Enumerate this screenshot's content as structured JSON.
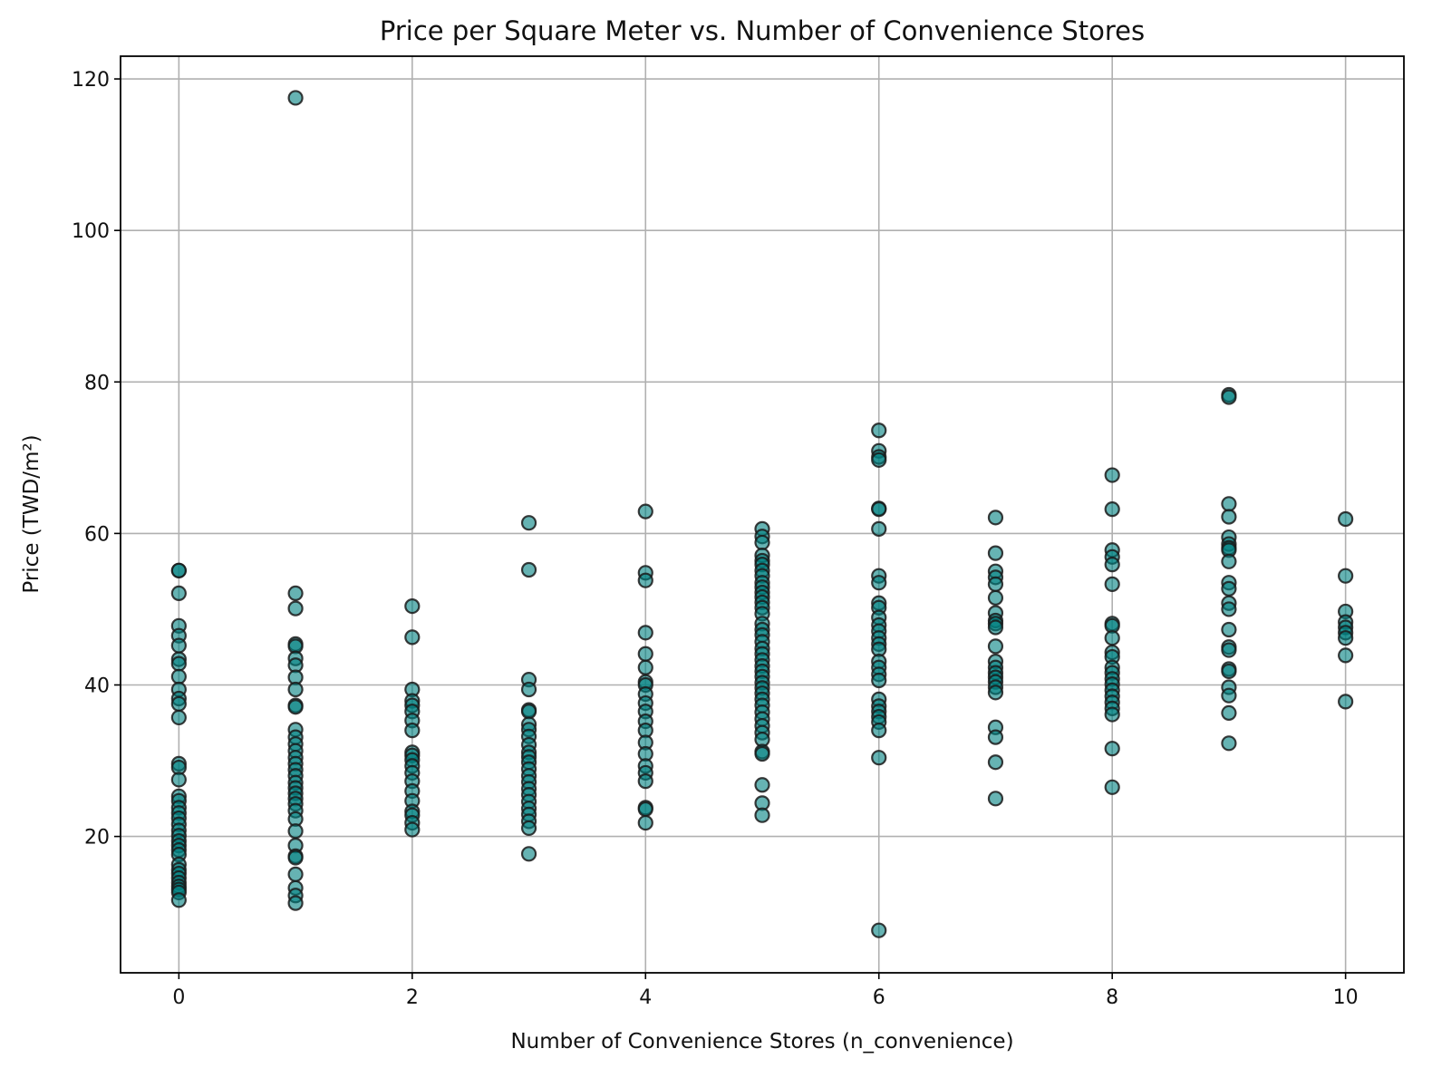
{
  "chart_data": {
    "type": "scatter",
    "title": "Price per Square Meter vs. Number of Convenience Stores",
    "xlabel": "Number of Convenience Stores (n_convenience)",
    "ylabel": "Price (TWD/m²)",
    "xlim": [
      -0.5,
      10.5
    ],
    "ylim": [
      2,
      123
    ],
    "xticks": [
      0,
      2,
      4,
      6,
      8,
      10
    ],
    "yticks": [
      20,
      40,
      60,
      80,
      100,
      120
    ],
    "grid": true,
    "legend": "none",
    "marker_color": "#008080",
    "marker_edge_color": "#1a1a1a",
    "marker_opacity": 0.6,
    "series": [
      {
        "points": [
          [
            0,
            55.1
          ],
          [
            0,
            55.1
          ],
          [
            0,
            52.1
          ],
          [
            0,
            47.8
          ],
          [
            0,
            46.5
          ],
          [
            0,
            45.2
          ],
          [
            0,
            43.4
          ],
          [
            0,
            42.8
          ],
          [
            0,
            41.1
          ],
          [
            0,
            39.4
          ],
          [
            0,
            38.2
          ],
          [
            0,
            37.5
          ],
          [
            0,
            35.7
          ],
          [
            0,
            29.6
          ],
          [
            0,
            29.1
          ],
          [
            0,
            27.5
          ],
          [
            0,
            25.3
          ],
          [
            0,
            24.7
          ],
          [
            0,
            23.8
          ],
          [
            0,
            23.1
          ],
          [
            0,
            22.4
          ],
          [
            0,
            21.6
          ],
          [
            0,
            20.8
          ],
          [
            0,
            20.1
          ],
          [
            0,
            19.4
          ],
          [
            0,
            18.8
          ],
          [
            0,
            18.2
          ],
          [
            0,
            17.6
          ],
          [
            0,
            16.3
          ],
          [
            0,
            15.6
          ],
          [
            0,
            15.1
          ],
          [
            0,
            14.5
          ],
          [
            0,
            13.9
          ],
          [
            0,
            13.4
          ],
          [
            0,
            13.0
          ],
          [
            0,
            12.6
          ],
          [
            0,
            11.6
          ],
          [
            1,
            117.5
          ],
          [
            1,
            52.1
          ],
          [
            1,
            50.1
          ],
          [
            1,
            45.4
          ],
          [
            1,
            45.1
          ],
          [
            1,
            43.5
          ],
          [
            1,
            42.6
          ],
          [
            1,
            41.0
          ],
          [
            1,
            39.4
          ],
          [
            1,
            37.3
          ],
          [
            1,
            37.1
          ],
          [
            1,
            34.1
          ],
          [
            1,
            33.1
          ],
          [
            1,
            32.2
          ],
          [
            1,
            31.3
          ],
          [
            1,
            30.4
          ],
          [
            1,
            29.6
          ],
          [
            1,
            28.8
          ],
          [
            1,
            28.0
          ],
          [
            1,
            27.1
          ],
          [
            1,
            26.4
          ],
          [
            1,
            25.7
          ],
          [
            1,
            25.0
          ],
          [
            1,
            24.3
          ],
          [
            1,
            23.4
          ],
          [
            1,
            22.3
          ],
          [
            1,
            20.7
          ],
          [
            1,
            18.8
          ],
          [
            1,
            17.4
          ],
          [
            1,
            17.2
          ],
          [
            1,
            15.0
          ],
          [
            1,
            13.2
          ],
          [
            1,
            12.2
          ],
          [
            1,
            11.2
          ],
          [
            2,
            50.4
          ],
          [
            2,
            46.3
          ],
          [
            2,
            39.4
          ],
          [
            2,
            37.9
          ],
          [
            2,
            37.3
          ],
          [
            2,
            36.5
          ],
          [
            2,
            35.3
          ],
          [
            2,
            34.0
          ],
          [
            2,
            31.1
          ],
          [
            2,
            30.7
          ],
          [
            2,
            30.1
          ],
          [
            2,
            29.3
          ],
          [
            2,
            28.4
          ],
          [
            2,
            27.3
          ],
          [
            2,
            26.0
          ],
          [
            2,
            24.7
          ],
          [
            2,
            23.3
          ],
          [
            2,
            22.8
          ],
          [
            2,
            21.8
          ],
          [
            2,
            20.9
          ],
          [
            3,
            61.4
          ],
          [
            3,
            55.2
          ],
          [
            3,
            40.7
          ],
          [
            3,
            39.4
          ],
          [
            3,
            36.7
          ],
          [
            3,
            36.5
          ],
          [
            3,
            34.8
          ],
          [
            3,
            34.1
          ],
          [
            3,
            33.2
          ],
          [
            3,
            32.1
          ],
          [
            3,
            31.1
          ],
          [
            3,
            30.5
          ],
          [
            3,
            29.8
          ],
          [
            3,
            28.9
          ],
          [
            3,
            28.0
          ],
          [
            3,
            27.2
          ],
          [
            3,
            26.3
          ],
          [
            3,
            25.5
          ],
          [
            3,
            24.6
          ],
          [
            3,
            23.7
          ],
          [
            3,
            22.9
          ],
          [
            3,
            22.0
          ],
          [
            3,
            21.1
          ],
          [
            3,
            17.7
          ],
          [
            4,
            62.9
          ],
          [
            4,
            54.8
          ],
          [
            4,
            53.8
          ],
          [
            4,
            46.9
          ],
          [
            4,
            44.1
          ],
          [
            4,
            42.3
          ],
          [
            4,
            40.4
          ],
          [
            4,
            40.0
          ],
          [
            4,
            38.8
          ],
          [
            4,
            37.6
          ],
          [
            4,
            36.5
          ],
          [
            4,
            35.2
          ],
          [
            4,
            34.0
          ],
          [
            4,
            32.4
          ],
          [
            4,
            30.9
          ],
          [
            4,
            29.3
          ],
          [
            4,
            28.4
          ],
          [
            4,
            27.3
          ],
          [
            4,
            23.8
          ],
          [
            4,
            23.6
          ],
          [
            4,
            21.8
          ],
          [
            5,
            60.6
          ],
          [
            5,
            59.6
          ],
          [
            5,
            58.8
          ],
          [
            5,
            57.1
          ],
          [
            5,
            56.4
          ],
          [
            5,
            55.9
          ],
          [
            5,
            55.1
          ],
          [
            5,
            54.4
          ],
          [
            5,
            53.5
          ],
          [
            5,
            52.9
          ],
          [
            5,
            52.2
          ],
          [
            5,
            51.6
          ],
          [
            5,
            50.9
          ],
          [
            5,
            50.2
          ],
          [
            5,
            49.4
          ],
          [
            5,
            48.1
          ],
          [
            5,
            47.3
          ],
          [
            5,
            46.6
          ],
          [
            5,
            45.7
          ],
          [
            5,
            44.8
          ],
          [
            5,
            44.1
          ],
          [
            5,
            43.3
          ],
          [
            5,
            42.5
          ],
          [
            5,
            41.8
          ],
          [
            5,
            41.1
          ],
          [
            5,
            40.3
          ],
          [
            5,
            39.6
          ],
          [
            5,
            38.9
          ],
          [
            5,
            38.1
          ],
          [
            5,
            37.3
          ],
          [
            5,
            36.4
          ],
          [
            5,
            35.5
          ],
          [
            5,
            34.6
          ],
          [
            5,
            33.7
          ],
          [
            5,
            32.8
          ],
          [
            5,
            31.2
          ],
          [
            5,
            30.9
          ],
          [
            5,
            26.8
          ],
          [
            5,
            24.4
          ],
          [
            5,
            22.8
          ],
          [
            6,
            73.6
          ],
          [
            6,
            70.9
          ],
          [
            6,
            70.1
          ],
          [
            6,
            69.7
          ],
          [
            6,
            63.3
          ],
          [
            6,
            63.2
          ],
          [
            6,
            60.6
          ],
          [
            6,
            54.4
          ],
          [
            6,
            53.5
          ],
          [
            6,
            50.8
          ],
          [
            6,
            50.2
          ],
          [
            6,
            48.9
          ],
          [
            6,
            47.9
          ],
          [
            6,
            47.1
          ],
          [
            6,
            46.2
          ],
          [
            6,
            45.4
          ],
          [
            6,
            44.7
          ],
          [
            6,
            43.1
          ],
          [
            6,
            42.3
          ],
          [
            6,
            41.4
          ],
          [
            6,
            40.6
          ],
          [
            6,
            38.1
          ],
          [
            6,
            37.2
          ],
          [
            6,
            36.5
          ],
          [
            6,
            35.8
          ],
          [
            6,
            35.1
          ],
          [
            6,
            34.0
          ],
          [
            6,
            30.4
          ],
          [
            6,
            7.6
          ],
          [
            7,
            62.1
          ],
          [
            7,
            57.4
          ],
          [
            7,
            55.0
          ],
          [
            7,
            54.2
          ],
          [
            7,
            53.3
          ],
          [
            7,
            51.5
          ],
          [
            7,
            49.5
          ],
          [
            7,
            48.5
          ],
          [
            7,
            48.1
          ],
          [
            7,
            47.6
          ],
          [
            7,
            45.1
          ],
          [
            7,
            43.1
          ],
          [
            7,
            42.3
          ],
          [
            7,
            41.6
          ],
          [
            7,
            41.0
          ],
          [
            7,
            40.4
          ],
          [
            7,
            39.7
          ],
          [
            7,
            39.0
          ],
          [
            7,
            34.4
          ],
          [
            7,
            33.1
          ],
          [
            7,
            29.8
          ],
          [
            7,
            25.0
          ],
          [
            8,
            67.7
          ],
          [
            8,
            63.2
          ],
          [
            8,
            57.8
          ],
          [
            8,
            56.9
          ],
          [
            8,
            55.9
          ],
          [
            8,
            53.3
          ],
          [
            8,
            48.1
          ],
          [
            8,
            47.8
          ],
          [
            8,
            46.2
          ],
          [
            8,
            44.3
          ],
          [
            8,
            43.7
          ],
          [
            8,
            42.3
          ],
          [
            8,
            41.6
          ],
          [
            8,
            40.8
          ],
          [
            8,
            40.1
          ],
          [
            8,
            39.3
          ],
          [
            8,
            38.5
          ],
          [
            8,
            37.7
          ],
          [
            8,
            36.9
          ],
          [
            8,
            36.1
          ],
          [
            8,
            31.6
          ],
          [
            8,
            26.5
          ],
          [
            9,
            78.3
          ],
          [
            9,
            78.0
          ],
          [
            9,
            63.9
          ],
          [
            9,
            62.2
          ],
          [
            9,
            59.5
          ],
          [
            9,
            58.6
          ],
          [
            9,
            58.1
          ],
          [
            9,
            57.8
          ],
          [
            9,
            56.3
          ],
          [
            9,
            53.5
          ],
          [
            9,
            52.7
          ],
          [
            9,
            50.8
          ],
          [
            9,
            50.0
          ],
          [
            9,
            47.3
          ],
          [
            9,
            45.0
          ],
          [
            9,
            44.6
          ],
          [
            9,
            42.1
          ],
          [
            9,
            41.8
          ],
          [
            9,
            39.7
          ],
          [
            9,
            38.6
          ],
          [
            9,
            36.3
          ],
          [
            9,
            32.3
          ],
          [
            10,
            61.9
          ],
          [
            10,
            54.4
          ],
          [
            10,
            49.7
          ],
          [
            10,
            48.3
          ],
          [
            10,
            47.6
          ],
          [
            10,
            46.9
          ],
          [
            10,
            46.2
          ],
          [
            10,
            43.9
          ],
          [
            10,
            37.8
          ]
        ]
      }
    ]
  }
}
